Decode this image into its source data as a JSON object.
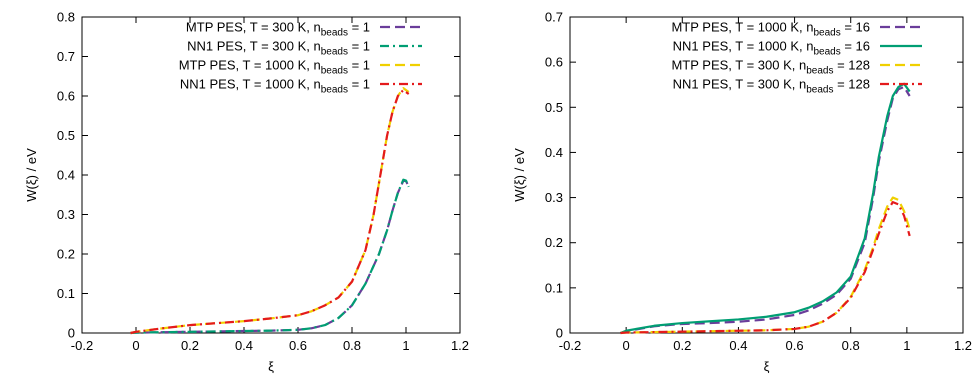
{
  "chart_data": [
    {
      "type": "line",
      "xlabel": "ξ",
      "ylabel": "W(ξ) / eV",
      "xlim": [
        -0.2,
        1.2
      ],
      "ylim": [
        0,
        0.8
      ],
      "xticks": [
        "-0.2",
        "0",
        "0.2",
        "0.4",
        "0.6",
        "0.8",
        "1",
        "1.2"
      ],
      "yticks": [
        "0",
        "0.1",
        "0.2",
        "0.3",
        "0.4",
        "0.5",
        "0.6",
        "0.7",
        "0.8"
      ],
      "legend_position": "top-right",
      "series": [
        {
          "legend_prefix": "MTP PES, T = 300 K, n",
          "legend_sub": "beads",
          "legend_suffix": " = 1",
          "color": "#6a3d9a",
          "style": "dashed",
          "points": [
            [
              -0.02,
              0.0
            ],
            [
              0.0,
              0.001
            ],
            [
              0.1,
              0.002
            ],
            [
              0.2,
              0.003
            ],
            [
              0.3,
              0.004
            ],
            [
              0.4,
              0.005
            ],
            [
              0.5,
              0.006
            ],
            [
              0.6,
              0.008
            ],
            [
              0.65,
              0.012
            ],
            [
              0.7,
              0.02
            ],
            [
              0.75,
              0.038
            ],
            [
              0.8,
              0.07
            ],
            [
              0.85,
              0.125
            ],
            [
              0.9,
              0.2
            ],
            [
              0.93,
              0.26
            ],
            [
              0.95,
              0.31
            ],
            [
              0.97,
              0.355
            ],
            [
              0.99,
              0.385
            ],
            [
              1.0,
              0.385
            ],
            [
              1.01,
              0.37
            ]
          ]
        },
        {
          "legend_prefix": "NN1 PES, T = 300 K, n",
          "legend_sub": "beads",
          "legend_suffix": " = 1",
          "color": "#009e73",
          "style": "dashdot",
          "points": [
            [
              -0.02,
              0.0
            ],
            [
              0.0,
              0.001
            ],
            [
              0.1,
              0.002
            ],
            [
              0.2,
              0.003
            ],
            [
              0.3,
              0.004
            ],
            [
              0.4,
              0.005
            ],
            [
              0.5,
              0.006
            ],
            [
              0.6,
              0.008
            ],
            [
              0.65,
              0.012
            ],
            [
              0.7,
              0.02
            ],
            [
              0.75,
              0.038
            ],
            [
              0.8,
              0.07
            ],
            [
              0.85,
              0.125
            ],
            [
              0.9,
              0.2
            ],
            [
              0.93,
              0.26
            ],
            [
              0.95,
              0.31
            ],
            [
              0.97,
              0.355
            ],
            [
              0.99,
              0.388
            ],
            [
              1.0,
              0.386
            ],
            [
              1.01,
              0.37
            ]
          ]
        },
        {
          "legend_prefix": "MTP PES, T = 1000 K, n",
          "legend_sub": "beads",
          "legend_suffix": " = 1",
          "color": "#f0d000",
          "style": "dashed",
          "points": [
            [
              -0.02,
              0.0
            ],
            [
              0.0,
              0.003
            ],
            [
              0.1,
              0.012
            ],
            [
              0.2,
              0.02
            ],
            [
              0.3,
              0.025
            ],
            [
              0.4,
              0.03
            ],
            [
              0.5,
              0.037
            ],
            [
              0.6,
              0.045
            ],
            [
              0.65,
              0.055
            ],
            [
              0.7,
              0.07
            ],
            [
              0.75,
              0.09
            ],
            [
              0.8,
              0.13
            ],
            [
              0.85,
              0.21
            ],
            [
              0.88,
              0.3
            ],
            [
              0.9,
              0.38
            ],
            [
              0.93,
              0.5
            ],
            [
              0.95,
              0.56
            ],
            [
              0.97,
              0.6
            ],
            [
              0.99,
              0.62
            ],
            [
              1.01,
              0.61
            ]
          ]
        },
        {
          "legend_prefix": "NN1 PES, T = 1000 K, n",
          "legend_sub": "beads",
          "legend_suffix": " = 1",
          "color": "#e41a1c",
          "style": "dashdot",
          "points": [
            [
              -0.02,
              0.0
            ],
            [
              0.0,
              0.003
            ],
            [
              0.1,
              0.012
            ],
            [
              0.2,
              0.02
            ],
            [
              0.3,
              0.025
            ],
            [
              0.4,
              0.03
            ],
            [
              0.5,
              0.037
            ],
            [
              0.6,
              0.045
            ],
            [
              0.65,
              0.055
            ],
            [
              0.7,
              0.07
            ],
            [
              0.75,
              0.09
            ],
            [
              0.8,
              0.13
            ],
            [
              0.85,
              0.21
            ],
            [
              0.88,
              0.3
            ],
            [
              0.9,
              0.38
            ],
            [
              0.93,
              0.5
            ],
            [
              0.95,
              0.56
            ],
            [
              0.97,
              0.6
            ],
            [
              0.99,
              0.615
            ],
            [
              1.01,
              0.605
            ]
          ]
        }
      ]
    },
    {
      "type": "line",
      "xlabel": "ξ",
      "ylabel": "W(ξ) / eV",
      "xlim": [
        -0.2,
        1.2
      ],
      "ylim": [
        0,
        0.7
      ],
      "xticks": [
        "-0.2",
        "0",
        "0.2",
        "0.4",
        "0.6",
        "0.8",
        "1",
        "1.2"
      ],
      "yticks": [
        "0",
        "0.1",
        "0.2",
        "0.3",
        "0.4",
        "0.5",
        "0.6",
        "0.7"
      ],
      "legend_position": "top-right",
      "series": [
        {
          "legend_prefix": "MTP PES, T = 1000 K, n",
          "legend_sub": "beads",
          "legend_suffix": " = 16",
          "color": "#6a3d9a",
          "style": "dashed",
          "points": [
            [
              -0.02,
              0.0
            ],
            [
              0.0,
              0.004
            ],
            [
              0.1,
              0.015
            ],
            [
              0.2,
              0.02
            ],
            [
              0.3,
              0.022
            ],
            [
              0.4,
              0.025
            ],
            [
              0.5,
              0.03
            ],
            [
              0.6,
              0.04
            ],
            [
              0.65,
              0.05
            ],
            [
              0.7,
              0.065
            ],
            [
              0.75,
              0.085
            ],
            [
              0.8,
              0.12
            ],
            [
              0.85,
              0.2
            ],
            [
              0.88,
              0.3
            ],
            [
              0.9,
              0.38
            ],
            [
              0.93,
              0.47
            ],
            [
              0.95,
              0.52
            ],
            [
              0.97,
              0.54
            ],
            [
              0.99,
              0.545
            ],
            [
              1.01,
              0.525
            ]
          ]
        },
        {
          "legend_prefix": "NN1 PES, T = 1000 K, n",
          "legend_sub": "beads",
          "legend_suffix": " = 16",
          "color": "#009e73",
          "style": "solid",
          "points": [
            [
              -0.02,
              0.0
            ],
            [
              0.0,
              0.005
            ],
            [
              0.1,
              0.016
            ],
            [
              0.2,
              0.022
            ],
            [
              0.3,
              0.026
            ],
            [
              0.4,
              0.03
            ],
            [
              0.5,
              0.036
            ],
            [
              0.6,
              0.046
            ],
            [
              0.65,
              0.056
            ],
            [
              0.7,
              0.07
            ],
            [
              0.75,
              0.09
            ],
            [
              0.8,
              0.125
            ],
            [
              0.85,
              0.21
            ],
            [
              0.88,
              0.31
            ],
            [
              0.9,
              0.39
            ],
            [
              0.93,
              0.48
            ],
            [
              0.95,
              0.525
            ],
            [
              0.97,
              0.545
            ],
            [
              0.99,
              0.552
            ],
            [
              1.01,
              0.535
            ]
          ]
        },
        {
          "legend_prefix": "MTP PES, T = 300 K, n",
          "legend_sub": "beads",
          "legend_suffix": " = 128",
          "color": "#f0d000",
          "style": "dashed",
          "points": [
            [
              -0.02,
              0.0
            ],
            [
              0.0,
              0.001
            ],
            [
              0.1,
              0.002
            ],
            [
              0.2,
              0.003
            ],
            [
              0.3,
              0.004
            ],
            [
              0.4,
              0.005
            ],
            [
              0.5,
              0.006
            ],
            [
              0.6,
              0.009
            ],
            [
              0.65,
              0.014
            ],
            [
              0.7,
              0.025
            ],
            [
              0.75,
              0.045
            ],
            [
              0.8,
              0.08
            ],
            [
              0.85,
              0.14
            ],
            [
              0.88,
              0.19
            ],
            [
              0.9,
              0.23
            ],
            [
              0.93,
              0.28
            ],
            [
              0.95,
              0.3
            ],
            [
              0.97,
              0.295
            ],
            [
              0.99,
              0.27
            ],
            [
              1.01,
              0.23
            ]
          ]
        },
        {
          "legend_prefix": "NN1 PES, T = 300 K, n",
          "legend_sub": "beads",
          "legend_suffix": " = 128",
          "color": "#e41a1c",
          "style": "dashdot",
          "points": [
            [
              -0.02,
              0.0
            ],
            [
              0.0,
              0.001
            ],
            [
              0.1,
              0.002
            ],
            [
              0.2,
              0.003
            ],
            [
              0.3,
              0.004
            ],
            [
              0.4,
              0.005
            ],
            [
              0.5,
              0.006
            ],
            [
              0.6,
              0.009
            ],
            [
              0.65,
              0.014
            ],
            [
              0.7,
              0.025
            ],
            [
              0.75,
              0.045
            ],
            [
              0.8,
              0.078
            ],
            [
              0.85,
              0.135
            ],
            [
              0.88,
              0.185
            ],
            [
              0.9,
              0.22
            ],
            [
              0.93,
              0.27
            ],
            [
              0.95,
              0.29
            ],
            [
              0.97,
              0.285
            ],
            [
              0.99,
              0.26
            ],
            [
              1.01,
              0.215
            ]
          ]
        }
      ]
    }
  ]
}
